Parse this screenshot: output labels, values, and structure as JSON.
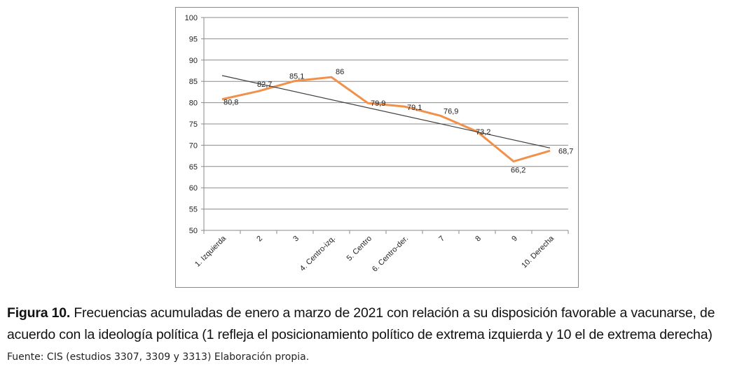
{
  "chart_data": {
    "type": "line",
    "categories": [
      "1. Izquierda",
      "2",
      "3",
      "4. Centro-izq.",
      "5. Centro",
      "6. Centro-der.",
      "7",
      "8",
      "9",
      "10. Derecha"
    ],
    "series": [
      {
        "values": [
          80.8,
          82.7,
          85.1,
          86,
          79.9,
          79.1,
          76.9,
          73.2,
          66.2,
          68.7
        ],
        "color": "#F0904A"
      }
    ],
    "data_labels": [
      "80,8",
      "82,7",
      "85,1",
      "86",
      "79,9",
      "79,1",
      "76,9",
      "73,2",
      "66,2",
      "68,7"
    ],
    "trendline": {
      "type": "linear",
      "color": "#404040"
    },
    "y_ticks": [
      "50",
      "55",
      "60",
      "65",
      "70",
      "75",
      "80",
      "85",
      "90",
      "95",
      "100"
    ],
    "ylim": [
      50,
      100
    ],
    "grid": true,
    "legend": "none"
  },
  "caption": {
    "label": "Figura 10.",
    "text": " Frecuencias acumuladas de enero a marzo de 2021 con relación a su disposición favorable a vacunarse, de acuerdo con la ideología política (1 refleja el posicionamiento político de extrema izquierda y 10 el de extrema derecha)"
  },
  "source": "Fuente: CIS (estudios 3307, 3309 y 3313) Elaboración propia."
}
